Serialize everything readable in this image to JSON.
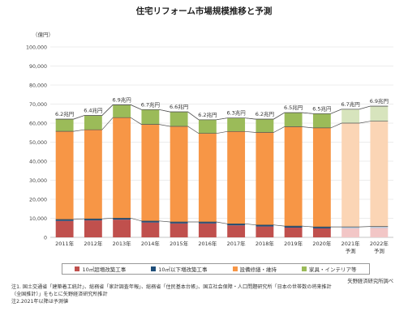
{
  "chart_data": {
    "type": "bar",
    "title": "住宅リフォーム市場規模推移と予測",
    "ylabel": "（億円）",
    "ylim": [
      0,
      100000
    ],
    "yticks": [
      "0",
      "10,000",
      "20,000",
      "30,000",
      "40,000",
      "50,000",
      "60,000",
      "70,000",
      "80,000",
      "90,000",
      "100,000"
    ],
    "grid": true,
    "categories": [
      "2011年",
      "2012年",
      "2013年",
      "2014年",
      "2015年",
      "2016年",
      "2017年",
      "2018年",
      "2019年",
      "2020年",
      "2021年",
      "2022年"
    ],
    "sublabels": [
      "",
      "",
      "",
      "",
      "",
      "",
      "",
      "",
      "",
      "",
      "予測",
      "予測"
    ],
    "totals_label": [
      "6.2兆円",
      "6.4兆円",
      "6.9兆円",
      "6.7兆円",
      "6.6兆円",
      "6.2兆円",
      "6.3兆円",
      "6.2兆円",
      "6.5兆円",
      "6.5兆円",
      "6.7兆円",
      "6.9兆円"
    ],
    "forecast_from_index": 10,
    "series": [
      {
        "name": "10㎡超増改築工事",
        "color": "#c0504d",
        "forecast_color": "#f2c6c6",
        "values": [
          8600,
          8900,
          9300,
          7800,
          7300,
          7300,
          6300,
          5700,
          5100,
          4700,
          4700,
          4900
        ]
      },
      {
        "name": "10㎡以下増改築工事",
        "color": "#1f4e79",
        "forecast_color": "#b7c9dc",
        "values": [
          800,
          800,
          800,
          800,
          800,
          800,
          800,
          800,
          800,
          800,
          800,
          800
        ]
      },
      {
        "name": "設備修繕・維持",
        "color": "#f79646",
        "forecast_color": "#fbd5b5",
        "values": [
          46300,
          46800,
          52800,
          50700,
          50200,
          46500,
          48500,
          48600,
          52200,
          52000,
          54500,
          55300
        ]
      },
      {
        "name": "家具・インテリア等",
        "color": "#9bbb59",
        "forecast_color": "#d7e4bd",
        "values": [
          6400,
          7500,
          6700,
          7800,
          7600,
          7200,
          7100,
          7000,
          7400,
          7500,
          7300,
          7900
        ]
      }
    ]
  },
  "source": "矢野経済研究所調べ",
  "notes": [
    "注1. 国土交通省「建築着工統計」、総務省「家計調査年報」、総務省「住民基本台帳」、国立社会保障・人口問題研究所「日本の世帯数の将来推計",
    "（全国推計）」をもとに矢野経済研究所推計",
    "注2.2021年以降は予測値"
  ]
}
